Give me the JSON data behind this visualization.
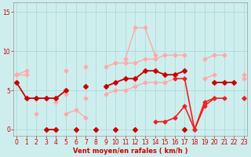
{
  "x": [
    0,
    1,
    2,
    3,
    4,
    5,
    6,
    7,
    8,
    9,
    10,
    11,
    12,
    13,
    14,
    15,
    16,
    17,
    18,
    19,
    20,
    21,
    22,
    23
  ],
  "series": [
    {
      "name": "upper_light_pink_envelope",
      "color": "#ffaaaa",
      "lw": 1.0,
      "ms": 2.5,
      "y": [
        7.0,
        7.5,
        null,
        null,
        null,
        7.5,
        null,
        8.0,
        null,
        8.0,
        8.5,
        8.5,
        8.5,
        9.0,
        9.0,
        9.5,
        9.5,
        9.5,
        null,
        9.0,
        9.5,
        9.5,
        null,
        7.0
      ]
    },
    {
      "name": "lower_light_pink_envelope",
      "color": "#ffaaaa",
      "lw": 1.0,
      "ms": 2.5,
      "y": [
        7.0,
        7.0,
        null,
        null,
        null,
        4.5,
        null,
        4.0,
        null,
        4.5,
        5.0,
        5.0,
        5.5,
        6.0,
        6.0,
        6.0,
        6.5,
        null,
        null,
        6.5,
        7.0,
        null,
        null,
        6.5
      ]
    },
    {
      "name": "light_pink_peak",
      "color": "#ffaaaa",
      "lw": 1.0,
      "ms": 2.5,
      "y": [
        null,
        null,
        null,
        null,
        3.5,
        null,
        null,
        null,
        null,
        null,
        null,
        9.0,
        13.0,
        13.0,
        9.5,
        null,
        null,
        null,
        null,
        null,
        null,
        null,
        null,
        null
      ]
    },
    {
      "name": "light_pink_early",
      "color": "#ffaaaa",
      "lw": 1.0,
      "ms": 2.5,
      "y": [
        null,
        null,
        2.0,
        null,
        null,
        2.0,
        2.5,
        1.5,
        null,
        null,
        null,
        null,
        null,
        null,
        null,
        null,
        null,
        null,
        null,
        null,
        null,
        null,
        null,
        null
      ]
    },
    {
      "name": "dark_red_main",
      "color": "#cc0000",
      "lw": 1.3,
      "ms": 3.0,
      "y": [
        6.0,
        4.0,
        4.0,
        4.0,
        4.0,
        5.0,
        null,
        5.5,
        null,
        5.5,
        6.0,
        6.5,
        6.5,
        7.5,
        7.5,
        7.0,
        7.0,
        7.5,
        null,
        null,
        6.0,
        6.0,
        6.0,
        null
      ]
    },
    {
      "name": "dark_red_zero_line",
      "color": "#cc0000",
      "lw": 1.3,
      "ms": 3.0,
      "y": [
        null,
        null,
        null,
        0.0,
        0.0,
        null,
        0.0,
        null,
        0.0,
        null,
        0.0,
        null,
        0.0,
        null,
        null,
        null,
        null,
        0.0,
        null,
        null,
        null,
        null,
        null,
        null
      ]
    },
    {
      "name": "medium_red_right",
      "color": "#ee2222",
      "lw": 1.2,
      "ms": 2.5,
      "y": [
        null,
        null,
        null,
        null,
        null,
        null,
        null,
        null,
        null,
        null,
        null,
        null,
        null,
        null,
        null,
        null,
        6.5,
        6.5,
        0.0,
        3.5,
        4.0,
        null,
        null,
        4.0
      ]
    },
    {
      "name": "medium_red_lower_traverse",
      "color": "#ee2222",
      "lw": 1.2,
      "ms": 2.5,
      "y": [
        null,
        null,
        null,
        null,
        null,
        null,
        null,
        null,
        null,
        null,
        null,
        null,
        null,
        null,
        1.0,
        1.0,
        1.5,
        3.0,
        0.0,
        3.0,
        4.0,
        4.0,
        null,
        4.0
      ]
    }
  ],
  "xlim": [
    -0.3,
    23.3
  ],
  "ylim": [
    -0.8,
    16.2
  ],
  "yticks": [
    0,
    5,
    10,
    15
  ],
  "xticks": [
    0,
    1,
    2,
    3,
    4,
    5,
    6,
    7,
    8,
    9,
    10,
    11,
    12,
    13,
    14,
    15,
    16,
    17,
    18,
    19,
    20,
    21,
    22,
    23
  ],
  "xlabel": "Vent moyen/en rafales ( km/h )",
  "bg_color": "#ceeeed",
  "grid_color": "#aadddd",
  "tick_color": "#cc0000",
  "label_color": "#cc0000",
  "figsize": [
    3.2,
    2.0
  ],
  "dpi": 100
}
